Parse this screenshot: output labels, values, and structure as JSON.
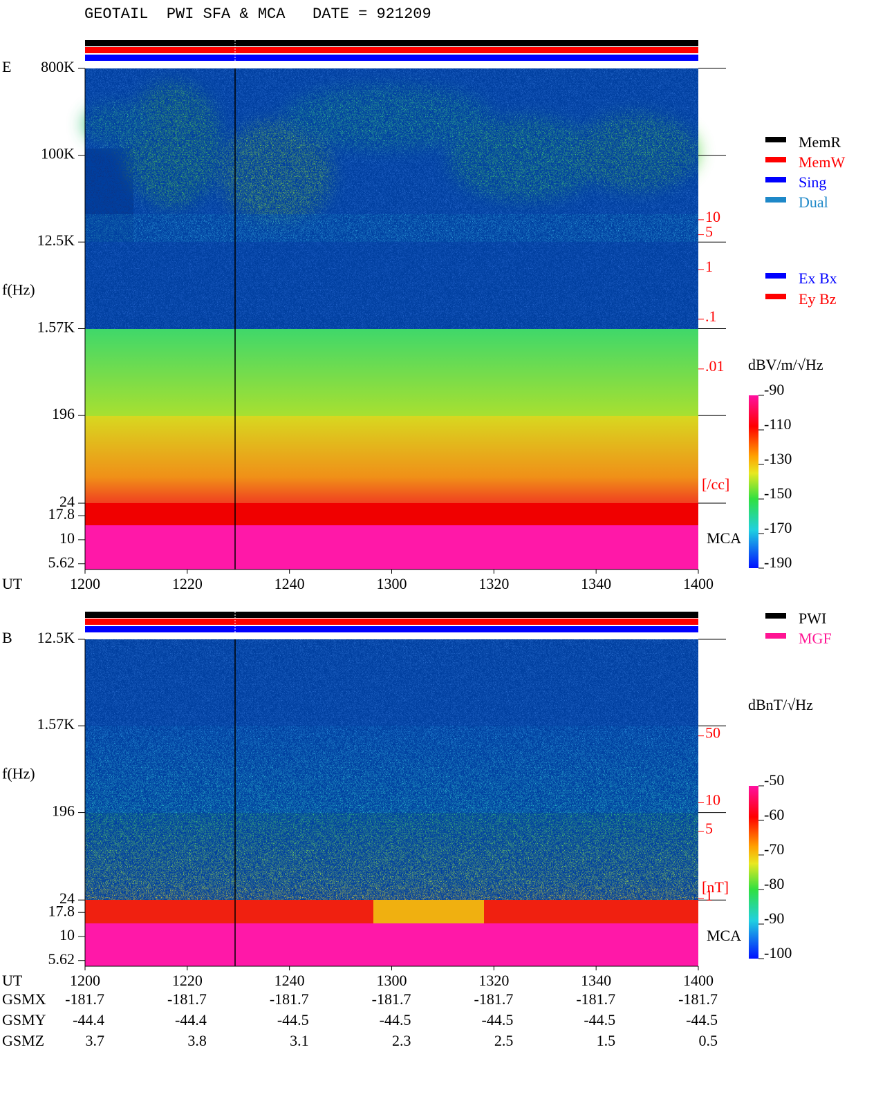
{
  "header": {
    "title": "GEOTAIL  PWI SFA & MCA   DATE = 921209"
  },
  "chart_data": [
    {
      "type": "spectrogram",
      "panel_label": "E",
      "ylabel": "f(Hz)",
      "xlabel": "UT",
      "xticks": [
        "1200",
        "1220",
        "1240",
        "1300",
        "1320",
        "1340",
        "1400"
      ],
      "log_y": true,
      "ylim": [
        4.9,
        800000
      ],
      "yticks": [
        {
          "value": 800000,
          "label": "800K"
        },
        {
          "value": 100000,
          "label": "100K"
        },
        {
          "value": 12500,
          "label": "12.5K"
        },
        {
          "value": 1570,
          "label": "1.57K"
        },
        196,
        24,
        17.8,
        10,
        5.62
      ],
      "y2lim": [
        9.3e-07,
        11000
      ],
      "y2ticks": [
        10,
        5,
        1,
        {
          "value": 0.1,
          "label": ".1"
        },
        {
          "value": 0.01,
          "label": ".01"
        }
      ],
      "y2label": "[/cc]",
      "y2color": "#ff0000",
      "band_label": "MCA",
      "colorbar": {
        "label": "dBV/m/√Hz",
        "clim": [
          -190,
          -90
        ],
        "ticks": [
          -90,
          -110,
          -130,
          -150,
          -170,
          -190
        ]
      },
      "legends": [
        [
          {
            "name": "MemR",
            "color": "#000000"
          },
          {
            "name": "MemW",
            "color": "#ff0000"
          },
          {
            "name": "Sing",
            "color": "#0000ff"
          },
          {
            "name": "Dual",
            "color": "#1e88c8"
          }
        ],
        [
          {
            "name": "Ex Bx",
            "color": "#0000ff"
          },
          {
            "name": "Ey Bz",
            "color": "#ff0000"
          }
        ]
      ]
    },
    {
      "type": "spectrogram",
      "panel_label": "B",
      "ylabel": "f(Hz)",
      "xlabel": "UT",
      "xticks": [
        "1200",
        "1220",
        "1240",
        "1300",
        "1320",
        "1340",
        "1400"
      ],
      "log_y": true,
      "ylim": [
        4.9,
        12500
      ],
      "yticks": [
        {
          "value": 12500,
          "label": "12.5K"
        },
        {
          "value": 1570,
          "label": "1.57K"
        },
        196,
        24,
        17.8,
        10,
        5.62
      ],
      "y2lim": [
        0.196,
        510
      ],
      "y2ticks": [
        50,
        10,
        5,
        1
      ],
      "y2label": "[nT]",
      "y2color": "#ff0000",
      "band_label": "MCA",
      "colorbar": {
        "label": "dBnT/√Hz",
        "clim": [
          -100,
          -50
        ],
        "ticks": [
          -50,
          -60,
          -70,
          -80,
          -90,
          -100
        ]
      },
      "legends": [
        [
          {
            "name": "PWI",
            "color": "#000000"
          },
          {
            "name": "MGF",
            "color": "#ff1493"
          }
        ]
      ]
    }
  ],
  "orbit": {
    "rows": [
      {
        "label": "GSMX",
        "values": [
          "-181.7",
          "-181.7",
          "-181.7",
          "-181.7",
          "-181.7",
          "-181.7",
          "-181.7"
        ]
      },
      {
        "label": "GSMY",
        "values": [
          "-44.4",
          "-44.4",
          "-44.5",
          "-44.5",
          "-44.5",
          "-44.5",
          "-44.5"
        ]
      },
      {
        "label": "GSMZ",
        "values": [
          "3.7",
          "3.8",
          "3.1",
          "2.3",
          "2.5",
          "1.5",
          "0.5"
        ]
      }
    ]
  }
}
